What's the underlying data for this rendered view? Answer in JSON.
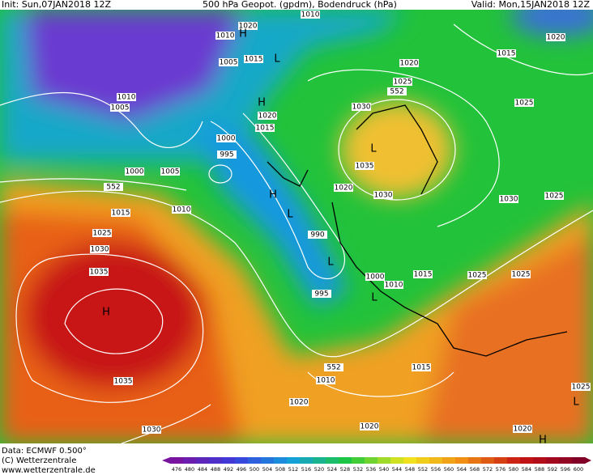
{
  "header": {
    "init": "Init: Sun,07JAN2018 12Z",
    "title": "500 hPa Geopot. (gpdm), Bodendruck (hPa)",
    "valid": "Valid: Mon,15JAN2018 12Z"
  },
  "isobar_labels": [
    "1010",
    "1020",
    "1010",
    "1005",
    "1015",
    "1020",
    "1025",
    "552",
    "1030",
    "1010",
    "1005",
    "1025",
    "1015",
    "1020",
    "1020",
    "1015",
    "1000",
    "995",
    "1000",
    "1005",
    "552",
    "1035",
    "1020",
    "1030",
    "1030",
    "1025",
    "1015",
    "1010",
    "1025",
    "1030",
    "1035",
    "990",
    "995",
    "1000",
    "1010",
    "1015",
    "1025",
    "1025",
    "1035",
    "552",
    "1010",
    "1015",
    "1020",
    "1020",
    "1020",
    "1030",
    "1025"
  ],
  "pressure_centers": [
    "H",
    "L",
    "H",
    "L",
    "H",
    "L",
    "L",
    "L",
    "H",
    "L",
    "H"
  ],
  "footer": {
    "data": "Data: ECMWF  0.500°",
    "copyright": "(C) Wetterzentrale",
    "url": "www.wetterzentrale.de"
  },
  "colorbar": {
    "ticks": [
      476,
      480,
      484,
      488,
      492,
      496,
      500,
      504,
      508,
      512,
      516,
      520,
      524,
      528,
      532,
      536,
      540,
      544,
      548,
      552,
      556,
      560,
      564,
      568,
      572,
      576,
      580,
      584,
      588,
      592,
      596,
      600
    ]
  }
}
